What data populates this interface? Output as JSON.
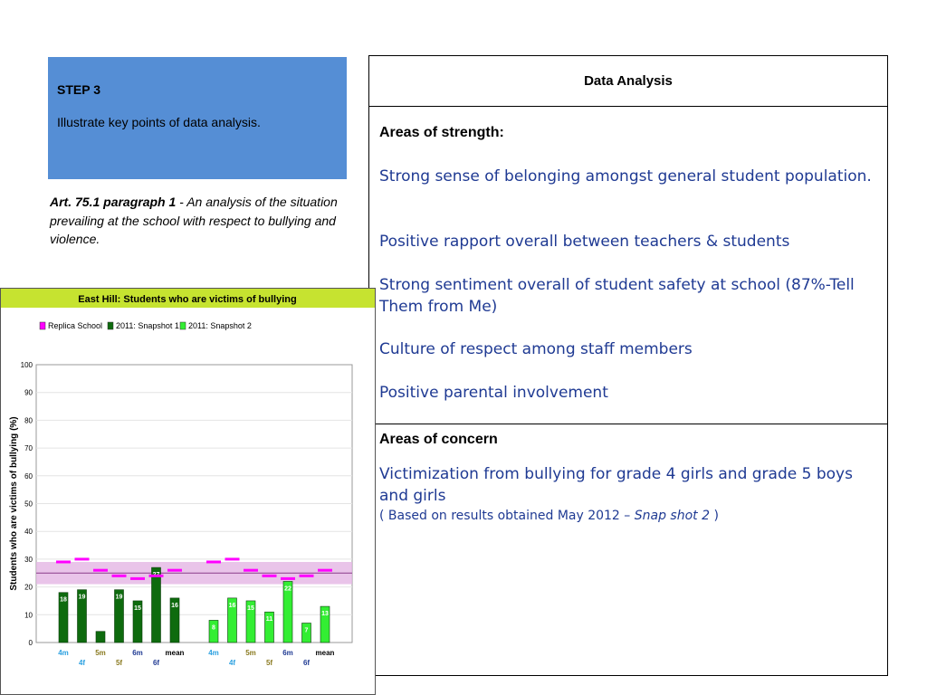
{
  "step": {
    "title": "STEP 3",
    "text": "Illustrate key points of  data analysis."
  },
  "article": {
    "ref": "Art. 75.1 paragraph 1",
    "text": " - An analysis of the situation prevailing at the school with respect to bullying and violence."
  },
  "table": {
    "header": "Data Analysis",
    "strength_label": "Areas of strength:",
    "strengths": [
      "Strong sense of belonging amongst general student population.",
      "Positive rapport overall between teachers & students",
      "Strong sentiment overall  of student safety  at school (87%-Tell Them from Me)",
      "Culture of respect among staff members",
      "Positive parental involvement"
    ],
    "concern_label": "Areas of concern",
    "concern_text": "Victimization from bullying for grade 4 girls and grade 5 boys and girls",
    "concern_note_start": "( Based on results obtained May 2012 – ",
    "concern_note_italic": "Snap shot 2",
    "concern_note_end": " )"
  },
  "chart_data": {
    "type": "bar",
    "title": "East Hill: Students who are victims of bullying",
    "ylabel": "Students who are victims of bullying (%)",
    "xlabel": "",
    "ylim": [
      0,
      100
    ],
    "yticks": [
      0,
      10,
      20,
      30,
      40,
      50,
      60,
      70,
      80,
      90,
      100
    ],
    "legend_position": "top-left",
    "legend": [
      "Replica School",
      "2011: Snapshot 1",
      "2011: Snapshot 2"
    ],
    "colors": {
      "title_bar": "#C6E330",
      "replica": "#FF00FF",
      "snapshot1": "#0E6B0E",
      "snapshot2": "#33EE33",
      "replica_band": "#E3B5E3"
    },
    "replica_band": {
      "low": 21,
      "high": 29,
      "mean": 25
    },
    "groups": [
      {
        "series": "2011: Snapshot 1",
        "bars": [
          {
            "label": "4m",
            "value": 18,
            "replica": 29
          },
          {
            "label": "4f",
            "value": 19,
            "replica": 30
          },
          {
            "label": "5m",
            "value": 4,
            "replica": 26
          },
          {
            "label": "5f",
            "value": 19,
            "replica": 24
          },
          {
            "label": "6m",
            "value": 15,
            "replica": 23
          },
          {
            "label": "6f",
            "value": 27,
            "replica": 24
          },
          {
            "label": "mean",
            "value": 16,
            "replica": 26
          }
        ],
        "data_labels": [
          "18",
          "19",
          "",
          "19",
          "15",
          "27",
          "16"
        ]
      },
      {
        "series": "2011: Snapshot 2",
        "bars": [
          {
            "label": "4m",
            "value": 8,
            "replica": 29
          },
          {
            "label": "4f",
            "value": 16,
            "replica": 30
          },
          {
            "label": "5m",
            "value": 15,
            "replica": 26
          },
          {
            "label": "5f",
            "value": 11,
            "replica": 24
          },
          {
            "label": "6m",
            "value": 22,
            "replica": 23
          },
          {
            "label": "6f",
            "value": 7,
            "replica": 24
          },
          {
            "label": "mean",
            "value": 13,
            "replica": 26
          }
        ],
        "data_labels": [
          "8",
          "16",
          "15",
          "11",
          "22",
          "7",
          "13"
        ]
      }
    ],
    "label_colors": {
      "4m": "#2AA0E0",
      "4f": "#2AA0E0",
      "5m": "#8A7A20",
      "5f": "#8A7A20",
      "6m": "#1F3A93",
      "6f": "#1F3A93",
      "mean": "#000000"
    }
  }
}
